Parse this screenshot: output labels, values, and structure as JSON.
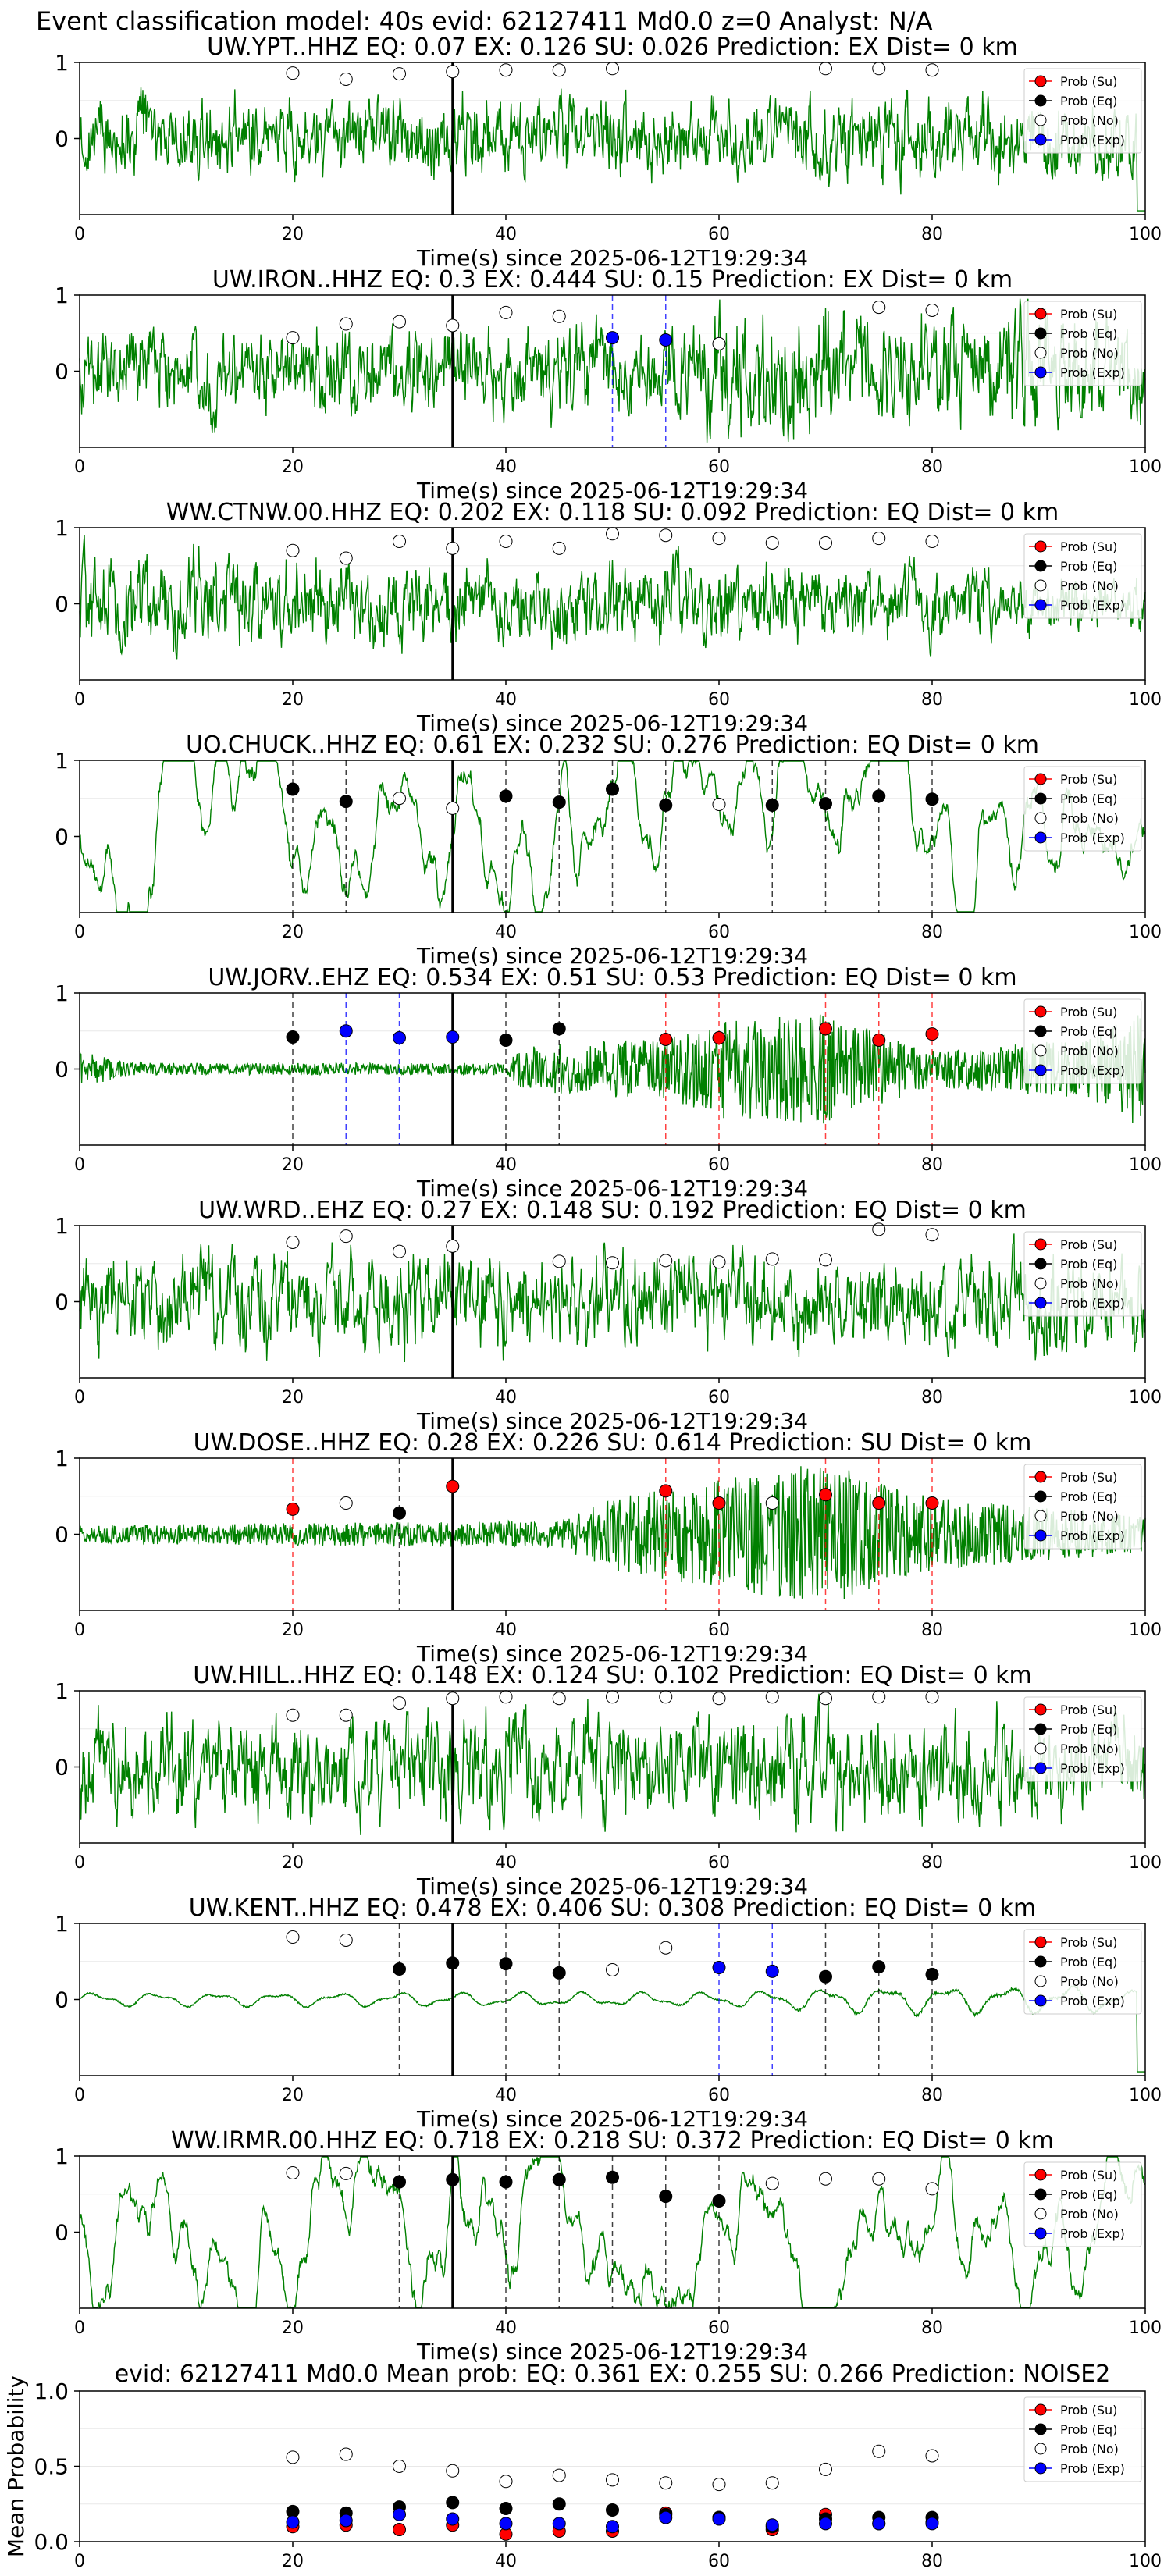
{
  "chart_data": {
    "type": "line",
    "suptitle": "Event classification model: 40s evid: 62127411 Md0.0 z=0 Analyst: N/A",
    "xlim": [
      0,
      100
    ],
    "x_ticks": [
      0,
      20,
      40,
      60,
      80,
      100
    ],
    "xlabel": "Time(s) since 2025-06-12T19:29:34",
    "window_times": [
      20,
      25,
      30,
      35,
      40,
      45,
      50,
      55,
      60,
      65,
      70,
      75,
      80
    ],
    "pick_time": 35,
    "legend": [
      "Prob (Su)",
      "Prob (Eq)",
      "Prob (No)",
      "Prob (Exp)"
    ],
    "legend_position": "top-right",
    "colors": {
      "su": "#ff0000",
      "eq": "#000000",
      "no": "#ffffff",
      "exp": "#0000ff",
      "trace": "#008000",
      "pick": "#000000"
    },
    "panels": [
      {
        "title": "UW.YPT..HHZ   EQ: 0.07  EX: 0.126  SU: 0.026   Prediction: EX    Dist= 0 km",
        "waveform": {
          "style": "broadband",
          "amp": 0.55,
          "env": [
            [
              0,
              1
            ],
            [
              100,
              1
            ]
          ],
          "end_spike": true
        },
        "points": [
          {
            "t": 20,
            "p": 0.86,
            "c": "no"
          },
          {
            "t": 25,
            "p": 0.78,
            "c": "no"
          },
          {
            "t": 30,
            "p": 0.85,
            "c": "no"
          },
          {
            "t": 35,
            "p": 0.88,
            "c": "no"
          },
          {
            "t": 40,
            "p": 0.9,
            "c": "no"
          },
          {
            "t": 45,
            "p": 0.9,
            "c": "no"
          },
          {
            "t": 50,
            "p": 0.92,
            "c": "no"
          },
          {
            "t": 70,
            "p": 0.92,
            "c": "no"
          },
          {
            "t": 75,
            "p": 0.92,
            "c": "no"
          },
          {
            "t": 80,
            "p": 0.9,
            "c": "no"
          }
        ]
      },
      {
        "title": "UW.IRON..HHZ   EQ: 0.3  EX: 0.444  SU: 0.15   Prediction: EX    Dist= 0 km",
        "waveform": {
          "style": "broadband",
          "amp": 0.6,
          "env": [
            [
              0,
              1
            ],
            [
              55,
              1
            ],
            [
              60,
              1.6
            ],
            [
              70,
              1.4
            ],
            [
              100,
              1.2
            ]
          ]
        },
        "points": [
          {
            "t": 20,
            "p": 0.44,
            "c": "no"
          },
          {
            "t": 25,
            "p": 0.62,
            "c": "no"
          },
          {
            "t": 30,
            "p": 0.65,
            "c": "no"
          },
          {
            "t": 35,
            "p": 0.6,
            "c": "no"
          },
          {
            "t": 40,
            "p": 0.77,
            "c": "no"
          },
          {
            "t": 45,
            "p": 0.72,
            "c": "no"
          },
          {
            "t": 50,
            "p": 0.44,
            "c": "exp"
          },
          {
            "t": 55,
            "p": 0.41,
            "c": "exp"
          },
          {
            "t": 60,
            "p": 0.36,
            "c": "no"
          },
          {
            "t": 75,
            "p": 0.84,
            "c": "no"
          },
          {
            "t": 80,
            "p": 0.8,
            "c": "no"
          }
        ]
      },
      {
        "title": "WW.CTNW.00.HHZ   EQ: 0.202  EX: 0.118  SU: 0.092   Prediction: EQ    Dist= 0 km",
        "waveform": {
          "style": "broadband",
          "amp": 0.55,
          "env": [
            [
              0,
              1.2
            ],
            [
              30,
              1
            ],
            [
              70,
              1
            ],
            [
              100,
              0.6
            ]
          ]
        },
        "points": [
          {
            "t": 20,
            "p": 0.7,
            "c": "no"
          },
          {
            "t": 25,
            "p": 0.6,
            "c": "no"
          },
          {
            "t": 30,
            "p": 0.82,
            "c": "no"
          },
          {
            "t": 35,
            "p": 0.73,
            "c": "no"
          },
          {
            "t": 40,
            "p": 0.82,
            "c": "no"
          },
          {
            "t": 45,
            "p": 0.73,
            "c": "no"
          },
          {
            "t": 50,
            "p": 0.92,
            "c": "no"
          },
          {
            "t": 55,
            "p": 0.9,
            "c": "no"
          },
          {
            "t": 60,
            "p": 0.86,
            "c": "no"
          },
          {
            "t": 65,
            "p": 0.8,
            "c": "no"
          },
          {
            "t": 70,
            "p": 0.8,
            "c": "no"
          },
          {
            "t": 75,
            "p": 0.86,
            "c": "no"
          },
          {
            "t": 80,
            "p": 0.82,
            "c": "no"
          }
        ]
      },
      {
        "title": "UO.CHUCK..HHZ   EQ: 0.61  EX: 0.232  SU: 0.276   Prediction: EQ    Dist= 0 km",
        "waveform": {
          "style": "lowfreq",
          "amp": 0.55,
          "env": [
            [
              0,
              1
            ],
            [
              100,
              1
            ]
          ]
        },
        "points": [
          {
            "t": 20,
            "p": 0.62,
            "c": "eq"
          },
          {
            "t": 25,
            "p": 0.46,
            "c": "eq"
          },
          {
            "t": 30,
            "p": 0.5,
            "c": "no"
          },
          {
            "t": 35,
            "p": 0.37,
            "c": "no"
          },
          {
            "t": 40,
            "p": 0.53,
            "c": "eq"
          },
          {
            "t": 45,
            "p": 0.45,
            "c": "eq"
          },
          {
            "t": 50,
            "p": 0.62,
            "c": "eq"
          },
          {
            "t": 55,
            "p": 0.41,
            "c": "eq"
          },
          {
            "t": 60,
            "p": 0.42,
            "c": "no"
          },
          {
            "t": 65,
            "p": 0.41,
            "c": "eq"
          },
          {
            "t": 70,
            "p": 0.43,
            "c": "eq"
          },
          {
            "t": 75,
            "p": 0.53,
            "c": "eq"
          },
          {
            "t": 80,
            "p": 0.49,
            "c": "eq"
          }
        ]
      },
      {
        "title": "UW.JORV..EHZ   EQ: 0.534  EX: 0.51  SU: 0.53   Prediction: EQ    Dist= 0 km",
        "waveform": {
          "style": "bursty",
          "amp": 0.08,
          "env": [
            [
              0,
              3
            ],
            [
              5,
              1
            ],
            [
              40,
              1
            ],
            [
              42,
              4
            ],
            [
              55,
              5
            ],
            [
              60,
              8
            ],
            [
              70,
              9
            ],
            [
              80,
              3
            ],
            [
              95,
              5
            ],
            [
              98,
              9
            ],
            [
              100,
              9
            ]
          ]
        },
        "points": [
          {
            "t": 20,
            "p": 0.42,
            "c": "eq"
          },
          {
            "t": 25,
            "p": 0.5,
            "c": "exp"
          },
          {
            "t": 30,
            "p": 0.41,
            "c": "exp"
          },
          {
            "t": 35,
            "p": 0.42,
            "c": "exp"
          },
          {
            "t": 40,
            "p": 0.38,
            "c": "eq"
          },
          {
            "t": 45,
            "p": 0.53,
            "c": "eq"
          },
          {
            "t": 55,
            "p": 0.39,
            "c": "su"
          },
          {
            "t": 60,
            "p": 0.41,
            "c": "su"
          },
          {
            "t": 70,
            "p": 0.53,
            "c": "su"
          },
          {
            "t": 75,
            "p": 0.38,
            "c": "su"
          },
          {
            "t": 80,
            "p": 0.46,
            "c": "su"
          }
        ]
      },
      {
        "title": "UW.WRD..EHZ   EQ: 0.27  EX: 0.148  SU: 0.192   Prediction: EQ    Dist= 0 km",
        "waveform": {
          "style": "broadband",
          "amp": 0.65,
          "env": [
            [
              0,
              1
            ],
            [
              100,
              1
            ]
          ]
        },
        "points": [
          {
            "t": 20,
            "p": 0.78,
            "c": "no"
          },
          {
            "t": 25,
            "p": 0.86,
            "c": "no"
          },
          {
            "t": 30,
            "p": 0.66,
            "c": "no"
          },
          {
            "t": 35,
            "p": 0.73,
            "c": "no"
          },
          {
            "t": 45,
            "p": 0.53,
            "c": "no"
          },
          {
            "t": 50,
            "p": 0.51,
            "c": "no"
          },
          {
            "t": 55,
            "p": 0.54,
            "c": "no"
          },
          {
            "t": 60,
            "p": 0.52,
            "c": "no"
          },
          {
            "t": 65,
            "p": 0.56,
            "c": "no"
          },
          {
            "t": 70,
            "p": 0.55,
            "c": "no"
          },
          {
            "t": 75,
            "p": 0.95,
            "c": "no"
          },
          {
            "t": 80,
            "p": 0.88,
            "c": "no"
          }
        ]
      },
      {
        "title": "UW.DOSE..HHZ   EQ: 0.28  EX: 0.226  SU: 0.614   Prediction: SU    Dist= 0 km",
        "waveform": {
          "style": "bursty",
          "amp": 0.12,
          "env": [
            [
              0,
              1
            ],
            [
              45,
              1.5
            ],
            [
              50,
              4
            ],
            [
              55,
              5
            ],
            [
              60,
              6
            ],
            [
              70,
              8
            ],
            [
              80,
              4
            ],
            [
              100,
              2
            ]
          ]
        },
        "points": [
          {
            "t": 20,
            "p": 0.33,
            "c": "su"
          },
          {
            "t": 25,
            "p": 0.41,
            "c": "no"
          },
          {
            "t": 30,
            "p": 0.28,
            "c": "eq"
          },
          {
            "t": 35,
            "p": 0.63,
            "c": "su"
          },
          {
            "t": 55,
            "p": 0.57,
            "c": "su"
          },
          {
            "t": 60,
            "p": 0.41,
            "c": "su"
          },
          {
            "t": 65,
            "p": 0.41,
            "c": "no"
          },
          {
            "t": 70,
            "p": 0.52,
            "c": "su"
          },
          {
            "t": 75,
            "p": 0.41,
            "c": "su"
          },
          {
            "t": 80,
            "p": 0.41,
            "c": "su"
          }
        ]
      },
      {
        "title": "UW.HILL..HHZ   EQ: 0.148  EX: 0.124  SU: 0.102   Prediction: EQ    Dist= 0 km",
        "waveform": {
          "style": "broadband",
          "amp": 0.7,
          "env": [
            [
              0,
              1
            ],
            [
              100,
              1
            ]
          ]
        },
        "points": [
          {
            "t": 20,
            "p": 0.68,
            "c": "no"
          },
          {
            "t": 25,
            "p": 0.68,
            "c": "no"
          },
          {
            "t": 30,
            "p": 0.84,
            "c": "no"
          },
          {
            "t": 35,
            "p": 0.9,
            "c": "no"
          },
          {
            "t": 40,
            "p": 0.92,
            "c": "no"
          },
          {
            "t": 45,
            "p": 0.9,
            "c": "no"
          },
          {
            "t": 50,
            "p": 0.92,
            "c": "no"
          },
          {
            "t": 55,
            "p": 0.92,
            "c": "no"
          },
          {
            "t": 60,
            "p": 0.9,
            "c": "no"
          },
          {
            "t": 65,
            "p": 0.92,
            "c": "no"
          },
          {
            "t": 70,
            "p": 0.9,
            "c": "no"
          },
          {
            "t": 75,
            "p": 0.92,
            "c": "no"
          },
          {
            "t": 80,
            "p": 0.92,
            "c": "no"
          }
        ]
      },
      {
        "title": "UW.KENT..HHZ   EQ: 0.478  EX: 0.406  SU: 0.308   Prediction: EQ    Dist= 0 km",
        "waveform": {
          "style": "smooth",
          "amp": 0.1,
          "env": [
            [
              0,
              1
            ],
            [
              60,
              1
            ],
            [
              75,
              2
            ],
            [
              95,
              2
            ],
            [
              100,
              1
            ]
          ],
          "end_spike": true
        },
        "points": [
          {
            "t": 20,
            "p": 0.82,
            "c": "no"
          },
          {
            "t": 25,
            "p": 0.78,
            "c": "no"
          },
          {
            "t": 30,
            "p": 0.4,
            "c": "eq"
          },
          {
            "t": 35,
            "p": 0.48,
            "c": "eq"
          },
          {
            "t": 40,
            "p": 0.47,
            "c": "eq"
          },
          {
            "t": 45,
            "p": 0.35,
            "c": "eq"
          },
          {
            "t": 50,
            "p": 0.39,
            "c": "no"
          },
          {
            "t": 55,
            "p": 0.68,
            "c": "no"
          },
          {
            "t": 60,
            "p": 0.42,
            "c": "exp"
          },
          {
            "t": 65,
            "p": 0.37,
            "c": "exp"
          },
          {
            "t": 70,
            "p": 0.3,
            "c": "eq"
          },
          {
            "t": 75,
            "p": 0.43,
            "c": "eq"
          },
          {
            "t": 80,
            "p": 0.33,
            "c": "eq"
          }
        ]
      },
      {
        "title": "WW.IRMR.00.HHZ   EQ: 0.718  EX: 0.218  SU: 0.372   Prediction: EQ    Dist= 0 km",
        "waveform": {
          "style": "lowfreq",
          "amp": 0.55,
          "env": [
            [
              0,
              1
            ],
            [
              100,
              1
            ]
          ]
        },
        "points": [
          {
            "t": 20,
            "p": 0.78,
            "c": "no"
          },
          {
            "t": 25,
            "p": 0.77,
            "c": "no"
          },
          {
            "t": 30,
            "p": 0.66,
            "c": "eq"
          },
          {
            "t": 35,
            "p": 0.69,
            "c": "eq"
          },
          {
            "t": 40,
            "p": 0.66,
            "c": "eq"
          },
          {
            "t": 45,
            "p": 0.69,
            "c": "eq"
          },
          {
            "t": 50,
            "p": 0.72,
            "c": "eq"
          },
          {
            "t": 55,
            "p": 0.47,
            "c": "eq"
          },
          {
            "t": 60,
            "p": 0.41,
            "c": "eq"
          },
          {
            "t": 65,
            "p": 0.64,
            "c": "no"
          },
          {
            "t": 70,
            "p": 0.7,
            "c": "no"
          },
          {
            "t": 75,
            "p": 0.7,
            "c": "no"
          },
          {
            "t": 80,
            "p": 0.57,
            "c": "no"
          }
        ]
      }
    ],
    "summary": {
      "title": "evid: 62127411  Md0.0   Mean prob:   EQ: 0.361  EX: 0.255  SU: 0.266   Prediction: NOISE2",
      "ylabel": "Mean Probability",
      "ylim": [
        0,
        1.0
      ],
      "y_ticks": [
        "0.0",
        "0.5",
        "1.0"
      ],
      "series": [
        {
          "name": "Prob (Su)",
          "key": "su",
          "values": [
            0.1,
            0.11,
            0.08,
            0.11,
            0.05,
            0.07,
            0.07,
            0.19,
            0.16,
            0.08,
            0.18,
            0.12,
            0.13
          ]
        },
        {
          "name": "Prob (Eq)",
          "key": "eq",
          "values": [
            0.2,
            0.19,
            0.23,
            0.26,
            0.22,
            0.25,
            0.21,
            0.18,
            0.16,
            0.1,
            0.15,
            0.16,
            0.16
          ]
        },
        {
          "name": "Prob (No)",
          "key": "no",
          "values": [
            0.56,
            0.58,
            0.5,
            0.47,
            0.4,
            0.44,
            0.41,
            0.39,
            0.38,
            0.39,
            0.48,
            0.6,
            0.57
          ]
        },
        {
          "name": "Prob (Exp)",
          "key": "exp",
          "values": [
            0.13,
            0.14,
            0.18,
            0.15,
            0.12,
            0.12,
            0.1,
            0.16,
            0.15,
            0.11,
            0.12,
            0.12,
            0.12
          ]
        }
      ]
    }
  }
}
